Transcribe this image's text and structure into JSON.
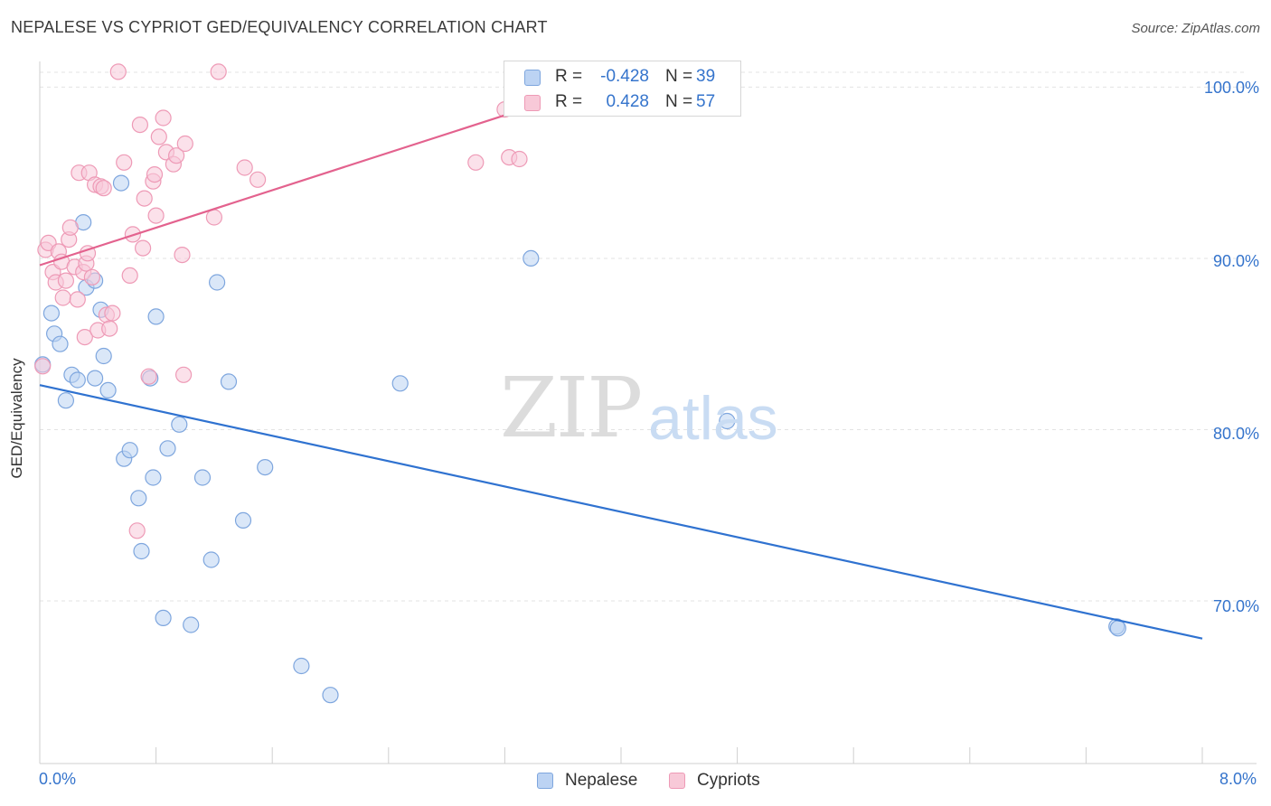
{
  "title": "NEPALESE VS CYPRIOT GED/EQUIVALENCY CORRELATION CHART",
  "source": "Source: ZipAtlas.com",
  "watermark": {
    "zip": "ZIP",
    "atlas": "atlas"
  },
  "colors": {
    "nepalese_fill": "#bcd3f3",
    "nepalese_stroke": "#7ea6de",
    "nepalese_line": "#2f72d0",
    "cypriots_fill": "#f8c9d8",
    "cypriots_stroke": "#ee9ab6",
    "cypriots_line": "#e3628e",
    "tick_label": "#3574cc"
  },
  "legend": {
    "rows": [
      {
        "r_label": "R =",
        "r_value": "-0.428",
        "n_label": "N =",
        "n_value": "39"
      },
      {
        "r_label": "R =",
        "r_value": "0.428",
        "n_label": "N =",
        "n_value": "57"
      }
    ]
  },
  "bottom_legend": {
    "nepalese": "Nepalese",
    "cypriots": "Cypriots"
  },
  "axes": {
    "ylabel": "GED/Equivalency",
    "y_ticks": [
      "100.0%",
      "90.0%",
      "80.0%",
      "70.0%"
    ],
    "x_left": "0.0%",
    "x_right": "8.0%"
  },
  "chart_data": {
    "type": "scatter",
    "title": "NEPALESE VS CYPRIOT GED/EQUIVALENCY CORRELATION CHART",
    "xlabel": "",
    "ylabel": "GED/Equivalency",
    "xlim": [
      0,
      8
    ],
    "ylim": [
      60.5,
      101.5
    ],
    "y_tick_values": [
      100,
      90,
      80,
      70
    ],
    "grid": true,
    "legend_position": "top-center",
    "series": [
      {
        "name": "Nepalese",
        "r": -0.428,
        "n": 39,
        "trend": {
          "x": [
            0.0,
            8.0
          ],
          "y": [
            82.6,
            67.8
          ]
        },
        "points": [
          [
            0.02,
            83.8
          ],
          [
            0.08,
            86.8
          ],
          [
            0.1,
            85.6
          ],
          [
            0.14,
            85.0
          ],
          [
            0.18,
            81.7
          ],
          [
            0.22,
            83.2
          ],
          [
            0.26,
            82.9
          ],
          [
            0.3,
            92.1
          ],
          [
            0.32,
            88.3
          ],
          [
            0.38,
            88.7
          ],
          [
            0.38,
            83.0
          ],
          [
            0.42,
            87.0
          ],
          [
            0.44,
            84.3
          ],
          [
            0.47,
            82.3
          ],
          [
            0.56,
            94.4
          ],
          [
            0.58,
            78.3
          ],
          [
            0.62,
            78.8
          ],
          [
            0.68,
            76.0
          ],
          [
            0.7,
            72.9
          ],
          [
            0.76,
            83.0
          ],
          [
            0.78,
            77.2
          ],
          [
            0.8,
            86.6
          ],
          [
            0.85,
            69.0
          ],
          [
            0.88,
            78.9
          ],
          [
            0.96,
            80.3
          ],
          [
            1.04,
            68.6
          ],
          [
            1.12,
            77.2
          ],
          [
            1.18,
            72.4
          ],
          [
            1.22,
            88.6
          ],
          [
            1.3,
            82.8
          ],
          [
            1.4,
            74.7
          ],
          [
            1.55,
            77.8
          ],
          [
            1.8,
            66.2
          ],
          [
            2.0,
            64.5
          ],
          [
            2.48,
            82.7
          ],
          [
            3.38,
            90.0
          ],
          [
            4.73,
            80.5
          ],
          [
            7.41,
            68.5
          ],
          [
            7.42,
            68.4
          ]
        ]
      },
      {
        "name": "Cypriots",
        "r": 0.428,
        "n": 57,
        "trend": {
          "x": [
            0.0,
            3.8
          ],
          "y": [
            89.6,
            100.0
          ]
        },
        "points": [
          [
            0.02,
            83.7
          ],
          [
            0.04,
            90.5
          ],
          [
            0.06,
            90.9
          ],
          [
            0.09,
            89.2
          ],
          [
            0.11,
            88.6
          ],
          [
            0.13,
            90.4
          ],
          [
            0.15,
            89.8
          ],
          [
            0.16,
            87.7
          ],
          [
            0.18,
            88.7
          ],
          [
            0.2,
            91.1
          ],
          [
            0.21,
            91.8
          ],
          [
            0.24,
            89.5
          ],
          [
            0.26,
            87.6
          ],
          [
            0.27,
            95.0
          ],
          [
            0.3,
            89.2
          ],
          [
            0.31,
            85.4
          ],
          [
            0.32,
            89.7
          ],
          [
            0.33,
            90.3
          ],
          [
            0.34,
            95.0
          ],
          [
            0.36,
            88.9
          ],
          [
            0.38,
            94.3
          ],
          [
            0.4,
            85.8
          ],
          [
            0.42,
            94.2
          ],
          [
            0.44,
            94.1
          ],
          [
            0.46,
            86.7
          ],
          [
            0.48,
            85.9
          ],
          [
            0.5,
            86.8
          ],
          [
            0.54,
            100.9
          ],
          [
            0.58,
            95.6
          ],
          [
            0.62,
            89.0
          ],
          [
            0.64,
            91.4
          ],
          [
            0.67,
            74.1
          ],
          [
            0.69,
            97.8
          ],
          [
            0.71,
            90.6
          ],
          [
            0.72,
            93.5
          ],
          [
            0.75,
            83.1
          ],
          [
            0.78,
            94.5
          ],
          [
            0.79,
            94.9
          ],
          [
            0.8,
            92.5
          ],
          [
            0.82,
            97.1
          ],
          [
            0.85,
            98.2
          ],
          [
            0.87,
            96.2
          ],
          [
            0.92,
            95.5
          ],
          [
            0.94,
            96.0
          ],
          [
            0.98,
            90.2
          ],
          [
            0.99,
            83.2
          ],
          [
            1.0,
            96.7
          ],
          [
            1.2,
            92.4
          ],
          [
            1.23,
            100.9
          ],
          [
            1.41,
            95.3
          ],
          [
            1.5,
            94.6
          ],
          [
            3.0,
            95.6
          ],
          [
            3.2,
            98.7
          ],
          [
            3.23,
            95.9
          ],
          [
            3.3,
            95.8
          ],
          [
            3.4,
            100.3
          ],
          [
            3.6,
            100.6
          ]
        ]
      }
    ]
  }
}
